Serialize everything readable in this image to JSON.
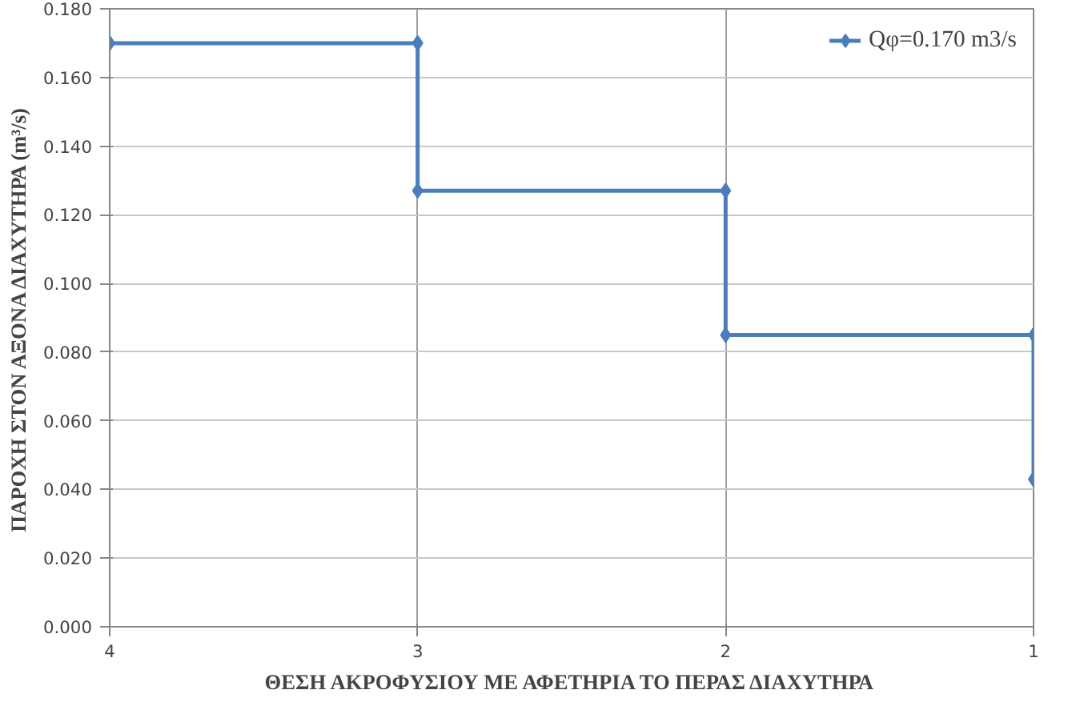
{
  "chart_data": {
    "type": "line",
    "xlabel": "ΘΕΣΗ ΑΚΡΟΦΥΣΙΟΥ ΜΕ ΑΦΕΤΗΡΙΑ ΤΟ ΠΕΡΑΣ ΔΙΑΧΥΤΗΡΑ",
    "ylabel": "ΠΑΡΟΧΗ ΣΤΟΝ ΑΞΟΝΑ ΔΙΑΧΥΤΗΡΑ (m³/s)",
    "x": [
      4,
      3,
      3,
      2,
      2,
      1,
      1
    ],
    "series": [
      {
        "name": "Qφ=0.170 m3/s",
        "color": "#4a7ebb",
        "values": [
          0.17,
          0.17,
          0.127,
          0.127,
          0.085,
          0.085,
          0.043
        ]
      }
    ],
    "xlim": [
      4,
      1
    ],
    "ylim": [
      0,
      0.18
    ],
    "xticks": [
      4,
      3,
      2,
      1
    ],
    "yticks": [
      {
        "value": 0,
        "label": "0.000"
      },
      {
        "value": 0.02,
        "label": "0.020"
      },
      {
        "value": 0.04,
        "label": "0.040"
      },
      {
        "value": 0.06,
        "label": "0.060"
      },
      {
        "value": 0.08,
        "label": "0.080"
      },
      {
        "value": 0.1,
        "label": "0.100"
      },
      {
        "value": 0.12,
        "label": "0.120"
      },
      {
        "value": 0.14,
        "label": "0.140"
      },
      {
        "value": 0.16,
        "label": "0.160"
      },
      {
        "value": 0.18,
        "label": "0.180"
      }
    ],
    "grid": true,
    "legend": "top right",
    "marker": "diamond",
    "line_style": "solid"
  }
}
